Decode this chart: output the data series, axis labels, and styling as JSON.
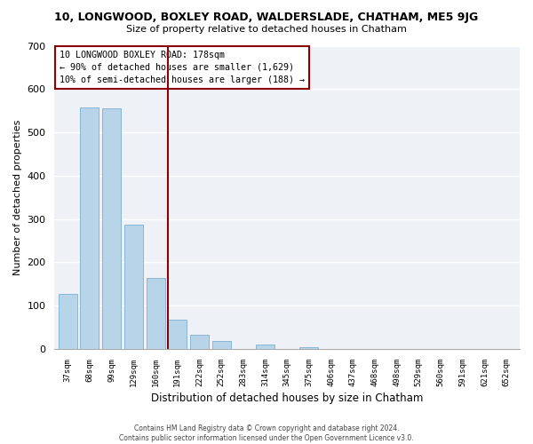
{
  "title": "10, LONGWOOD, BOXLEY ROAD, WALDERSLADE, CHATHAM, ME5 9JG",
  "subtitle": "Size of property relative to detached houses in Chatham",
  "xlabel": "Distribution of detached houses by size in Chatham",
  "ylabel": "Number of detached properties",
  "bar_labels": [
    "37sqm",
    "68sqm",
    "99sqm",
    "129sqm",
    "160sqm",
    "191sqm",
    "222sqm",
    "252sqm",
    "283sqm",
    "314sqm",
    "345sqm",
    "375sqm",
    "406sqm",
    "437sqm",
    "468sqm",
    "498sqm",
    "529sqm",
    "560sqm",
    "591sqm",
    "621sqm",
    "652sqm"
  ],
  "bar_values": [
    128,
    558,
    555,
    287,
    165,
    68,
    33,
    18,
    0,
    10,
    0,
    5,
    0,
    0,
    0,
    0,
    0,
    0,
    0,
    0,
    0
  ],
  "bar_color": "#b8d4e8",
  "bar_edge_color": "#7aafd4",
  "ylim": [
    0,
    700
  ],
  "yticks": [
    0,
    100,
    200,
    300,
    400,
    500,
    600,
    700
  ],
  "marker_line_color": "#8b0000",
  "annotation_line1": "10 LONGWOOD BOXLEY ROAD: 178sqm",
  "annotation_line2": "← 90% of detached houses are smaller (1,629)",
  "annotation_line3": "10% of semi-detached houses are larger (188) →",
  "footer1": "Contains HM Land Registry data © Crown copyright and database right 2024.",
  "footer2": "Contains public sector information licensed under the Open Government Licence v3.0.",
  "background_color": "#ffffff",
  "plot_bg_color": "#eef2f7",
  "grid_color": "#ffffff",
  "annotation_box_color": "#ffffff",
  "annotation_box_edge_color": "#8b0000"
}
